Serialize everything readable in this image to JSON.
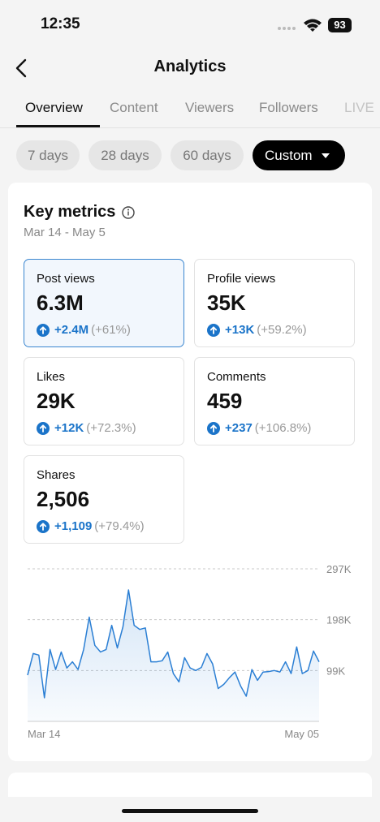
{
  "status": {
    "time": "12:35",
    "battery": "93"
  },
  "header": {
    "title": "Analytics"
  },
  "tabs": [
    "Overview",
    "Content",
    "Viewers",
    "Followers",
    "LIVE"
  ],
  "filters": [
    "7 days",
    "28 days",
    "60 days",
    "Custom"
  ],
  "key_metrics": {
    "title": "Key metrics",
    "date_range": "Mar 14 - May 5",
    "metrics": [
      {
        "label": "Post views",
        "value": "6.3M",
        "change": "+2.4M",
        "percent": "(+61%)"
      },
      {
        "label": "Profile views",
        "value": "35K",
        "change": "+13K",
        "percent": "(+59.2%)"
      },
      {
        "label": "Likes",
        "value": "29K",
        "change": "+12K",
        "percent": "(+72.3%)"
      },
      {
        "label": "Comments",
        "value": "459",
        "change": "+237",
        "percent": "(+106.8%)"
      },
      {
        "label": "Shares",
        "value": "2,506",
        "change": "+1,109",
        "percent": "(+79.4%)"
      }
    ]
  },
  "chart_data": {
    "type": "line",
    "categories": [
      "Mar 14",
      null,
      null,
      null,
      null,
      null,
      null,
      null,
      null,
      null,
      null,
      null,
      null,
      null,
      null,
      null,
      null,
      null,
      null,
      null,
      null,
      null,
      null,
      null,
      null,
      null,
      null,
      null,
      null,
      null,
      null,
      null,
      null,
      null,
      null,
      null,
      null,
      null,
      null,
      null,
      null,
      null,
      null,
      null,
      null,
      null,
      null,
      null,
      null,
      null,
      null,
      null,
      "May 05"
    ],
    "values": [
      90000,
      132000,
      129000,
      46000,
      140000,
      101000,
      135000,
      104000,
      116000,
      101000,
      140000,
      203000,
      148000,
      135000,
      140000,
      187000,
      143000,
      184000,
      256000,
      187000,
      179000,
      182000,
      116000,
      116000,
      118000,
      135000,
      93000,
      77000,
      124000,
      104000,
      99000,
      105000,
      132000,
      112000,
      64000,
      72000,
      85000,
      96000,
      69000,
      49000,
      101000,
      80000,
      96000,
      97000,
      99000,
      96000,
      116000,
      93000,
      145000,
      93000,
      99000,
      137000,
      116000
    ],
    "color": "#2b7fd4",
    "ylim": [
      0,
      297000
    ],
    "yticks": [
      {
        "value": 99000,
        "label": "99K"
      },
      {
        "value": 198000,
        "label": "198K"
      },
      {
        "value": 297000,
        "label": "297K"
      }
    ],
    "grid": true
  }
}
